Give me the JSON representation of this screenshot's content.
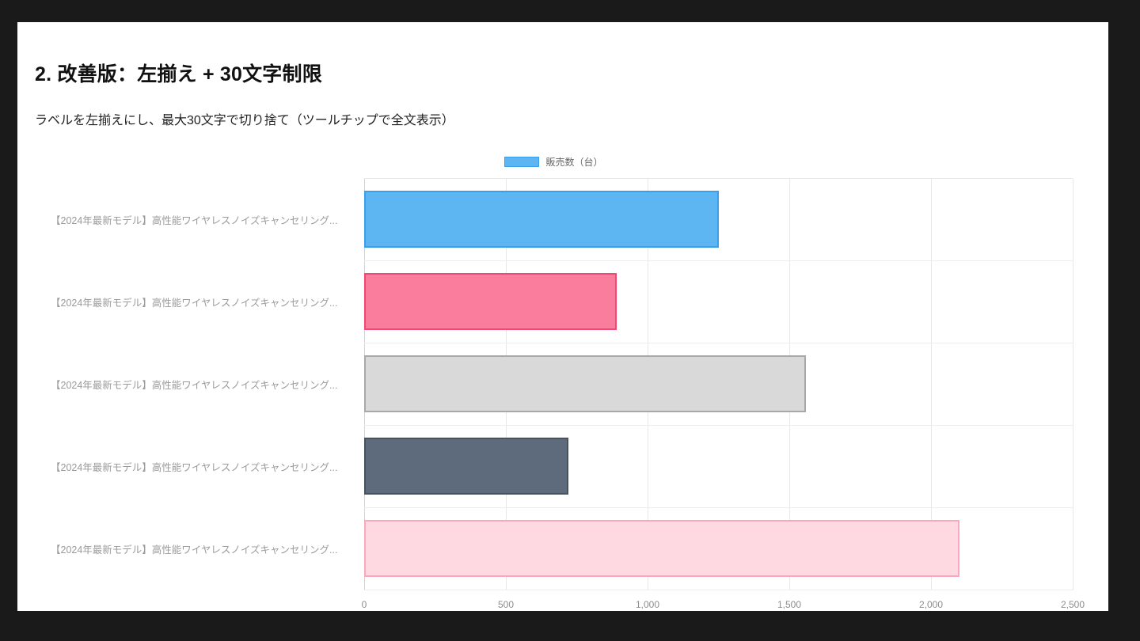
{
  "theme": {
    "frame_bg": "#1a1a1a",
    "card_bg": "#ffffff",
    "grid_color": "#e8e8e8",
    "axis_text_color": "#8d8d8d",
    "category_text_color": "#9b9b9b"
  },
  "header": {
    "title": "2. 改善版：左揃え + 30文字制限",
    "subtitle": "ラベルを左揃えにし、最大30文字で切り捨て（ツールチップで全文表示）"
  },
  "chart_data": {
    "type": "bar",
    "orientation": "horizontal",
    "title": "",
    "legend": {
      "position": "top",
      "label": "販売数（台）",
      "swatch_fill": "#5db5f1",
      "swatch_border": "#3aa0ea"
    },
    "categories": [
      "【2024年最新モデル】高性能ワイヤレスノイズキャンセリング...",
      "【2024年最新モデル】高性能ワイヤレスノイズキャンセリング...",
      "【2024年最新モデル】高性能ワイヤレスノイズキャンセリング...",
      "【2024年最新モデル】高性能ワイヤレスノイズキャンセリング...",
      "【2024年最新モデル】高性能ワイヤレスノイズキャンセリング..."
    ],
    "series": [
      {
        "name": "販売数（台）",
        "values": [
          1250,
          890,
          1560,
          720,
          2100
        ]
      }
    ],
    "bar_styles": [
      {
        "fill": "#5db5f1",
        "border": "#3aa0ea"
      },
      {
        "fill": "#fa7d9e",
        "border": "#f04a73"
      },
      {
        "fill": "#d9d9d9",
        "border": "#a8a8a8"
      },
      {
        "fill": "#5d6b7d",
        "border": "#47525f"
      },
      {
        "fill": "#ffd9e1",
        "border": "#f9a8bd"
      }
    ],
    "xlabel": "",
    "ylabel": "",
    "xlim": [
      0,
      2500
    ],
    "x_ticks": [
      "0",
      "500",
      "1,000",
      "1,500",
      "2,000",
      "2,500"
    ],
    "grid": true
  }
}
